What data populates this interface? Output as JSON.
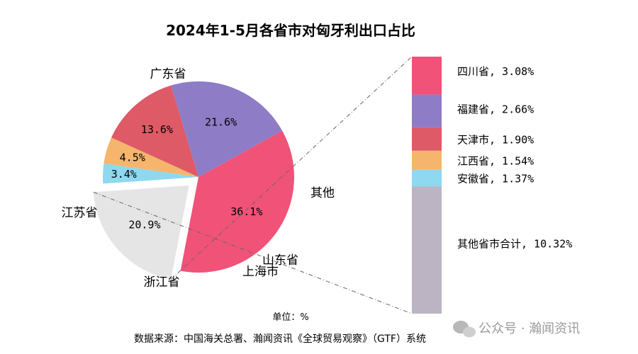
{
  "chart_data": [
    {
      "type": "pie",
      "title": "2024年1-5月各省市对匈牙利出口占比",
      "slices": [
        {
          "name": "广东省",
          "value": 36.1,
          "label": "36.1%",
          "color": "#f05278"
        },
        {
          "name": "其他",
          "value": 20.9,
          "label": "20.9%",
          "color": "#e5e5e5",
          "exploded": true
        },
        {
          "name": "山东省",
          "value": 3.4,
          "label": "3.4%",
          "color": "#8ed8f0"
        },
        {
          "name": "上海市",
          "value": 4.5,
          "label": "4.5%",
          "color": "#f5b56c"
        },
        {
          "name": "浙江省",
          "value": 13.6,
          "label": "13.6%",
          "color": "#de5a66"
        },
        {
          "name": "江苏省",
          "value": 21.6,
          "label": "21.6%",
          "color": "#8f7cc6"
        }
      ]
    },
    {
      "type": "bar",
      "stacked": true,
      "breakdown_of": "其他",
      "segments": [
        {
          "name": "四川省",
          "value": 3.08,
          "label": "四川省, 3.08%",
          "color": "#f05278"
        },
        {
          "name": "福建省",
          "value": 2.66,
          "label": "福建省, 2.66%",
          "color": "#8f7cc6"
        },
        {
          "name": "天津市",
          "value": 1.9,
          "label": "天津市, 1.90%",
          "color": "#de5a66"
        },
        {
          "name": "江西省",
          "value": 1.54,
          "label": "江西省, 1.54%",
          "color": "#f5b56c"
        },
        {
          "name": "安徽省",
          "value": 1.37,
          "label": "安徽省, 1.37%",
          "color": "#8ed8f0"
        },
        {
          "name": "其他省市合计",
          "value": 10.32,
          "label": "其他省市合计, 10.32%",
          "color": "#bcb4c2"
        }
      ]
    }
  ],
  "unit": "单位：%",
  "source": "数据来源：中国海关总署、瀚闻资讯《全球贸易观察》（GTF）系统",
  "watermark": "公众号 · 瀚闻资讯"
}
